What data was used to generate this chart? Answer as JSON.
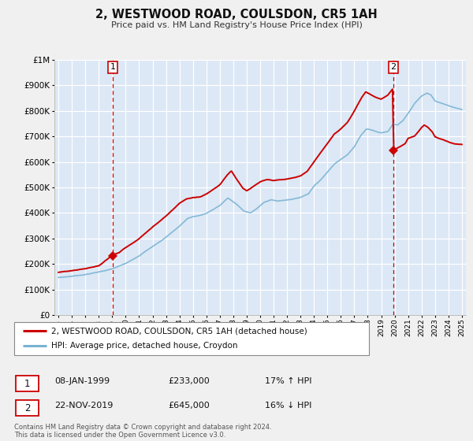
{
  "title": "2, WESTWOOD ROAD, COULSDON, CR5 1AH",
  "subtitle": "Price paid vs. HM Land Registry's House Price Index (HPI)",
  "legend_property": "2, WESTWOOD ROAD, COULSDON, CR5 1AH (detached house)",
  "legend_hpi": "HPI: Average price, detached house, Croydon",
  "annotation1_label": "1",
  "annotation1_date": "08-JAN-1999",
  "annotation1_price": "£233,000",
  "annotation1_hpi": "17% ↑ HPI",
  "annotation2_label": "2",
  "annotation2_date": "22-NOV-2019",
  "annotation2_price": "£645,000",
  "annotation2_hpi": "16% ↓ HPI",
  "footer1": "Contains HM Land Registry data © Crown copyright and database right 2024.",
  "footer2": "This data is licensed under the Open Government Licence v3.0.",
  "property_color": "#cc0000",
  "hpi_color": "#7ab3d4",
  "fig_bg_color": "#f0f0f0",
  "plot_bg_color": "#dce8f5",
  "grid_color": "#ffffff",
  "vline_color": "#cc0000",
  "marker_color": "#cc0000",
  "marker1_x": 1999.05,
  "marker1_y": 233000,
  "marker2_x": 2019.9,
  "marker2_y": 645000,
  "vline1_x": 1999.05,
  "vline2_x": 2019.9,
  "ylim_min": 0,
  "ylim_max": 1000000,
  "xlim_min": 1994.7,
  "xlim_max": 2025.3,
  "yticks": [
    0,
    100000,
    200000,
    300000,
    400000,
    500000,
    600000,
    700000,
    800000,
    900000,
    1000000
  ],
  "xtick_start": 1995,
  "xtick_end": 2025
}
